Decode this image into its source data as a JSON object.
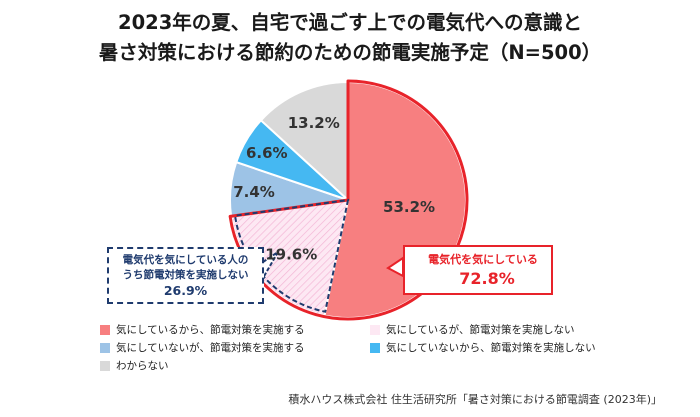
{
  "title_line1": "2023年の夏、自宅で過ごす上での電気代への意識と",
  "title_line2": "暑さ対策における節約のための節電実施予定（N=500）",
  "chart_data": {
    "type": "pie",
    "start_angle_deg": 0,
    "direction": "clockwise",
    "slices": [
      {
        "label": "気にしているから、節電対策を実施する",
        "value": 53.2,
        "value_label": "53.2%",
        "color": "#f77f80"
      },
      {
        "label": "気にしているが、節電対策を実施しない",
        "value": 19.6,
        "value_label": "19.6%",
        "color": "#fde8f3"
      },
      {
        "label": "気にしていないが、節電対策を実施する",
        "value": 7.4,
        "value_label": "7.4%",
        "color": "#9dc3e6"
      },
      {
        "label": "気にしていないから、節電対策を実施しない",
        "value": 6.6,
        "value_label": "6.6%",
        "color": "#45b8f2"
      },
      {
        "label": "わからない",
        "value": 13.2,
        "value_label": "13.2%",
        "color": "#d9d9d9"
      }
    ],
    "legend_position": "bottom",
    "annotations": [
      {
        "text": "電気代を気にしている",
        "value": "72.8%"
      },
      {
        "text_line1": "電気代を気にしている人の",
        "text_line2": "うち節電対策を実施しない",
        "value": "26.9%"
      }
    ]
  },
  "colors": {
    "highlight_red": "#e8232a",
    "highlight_navy": "#1f3b6e"
  },
  "source": "積水ハウス株式会社 住生活研究所「暑さ対策における節電調査 (2023年)」"
}
